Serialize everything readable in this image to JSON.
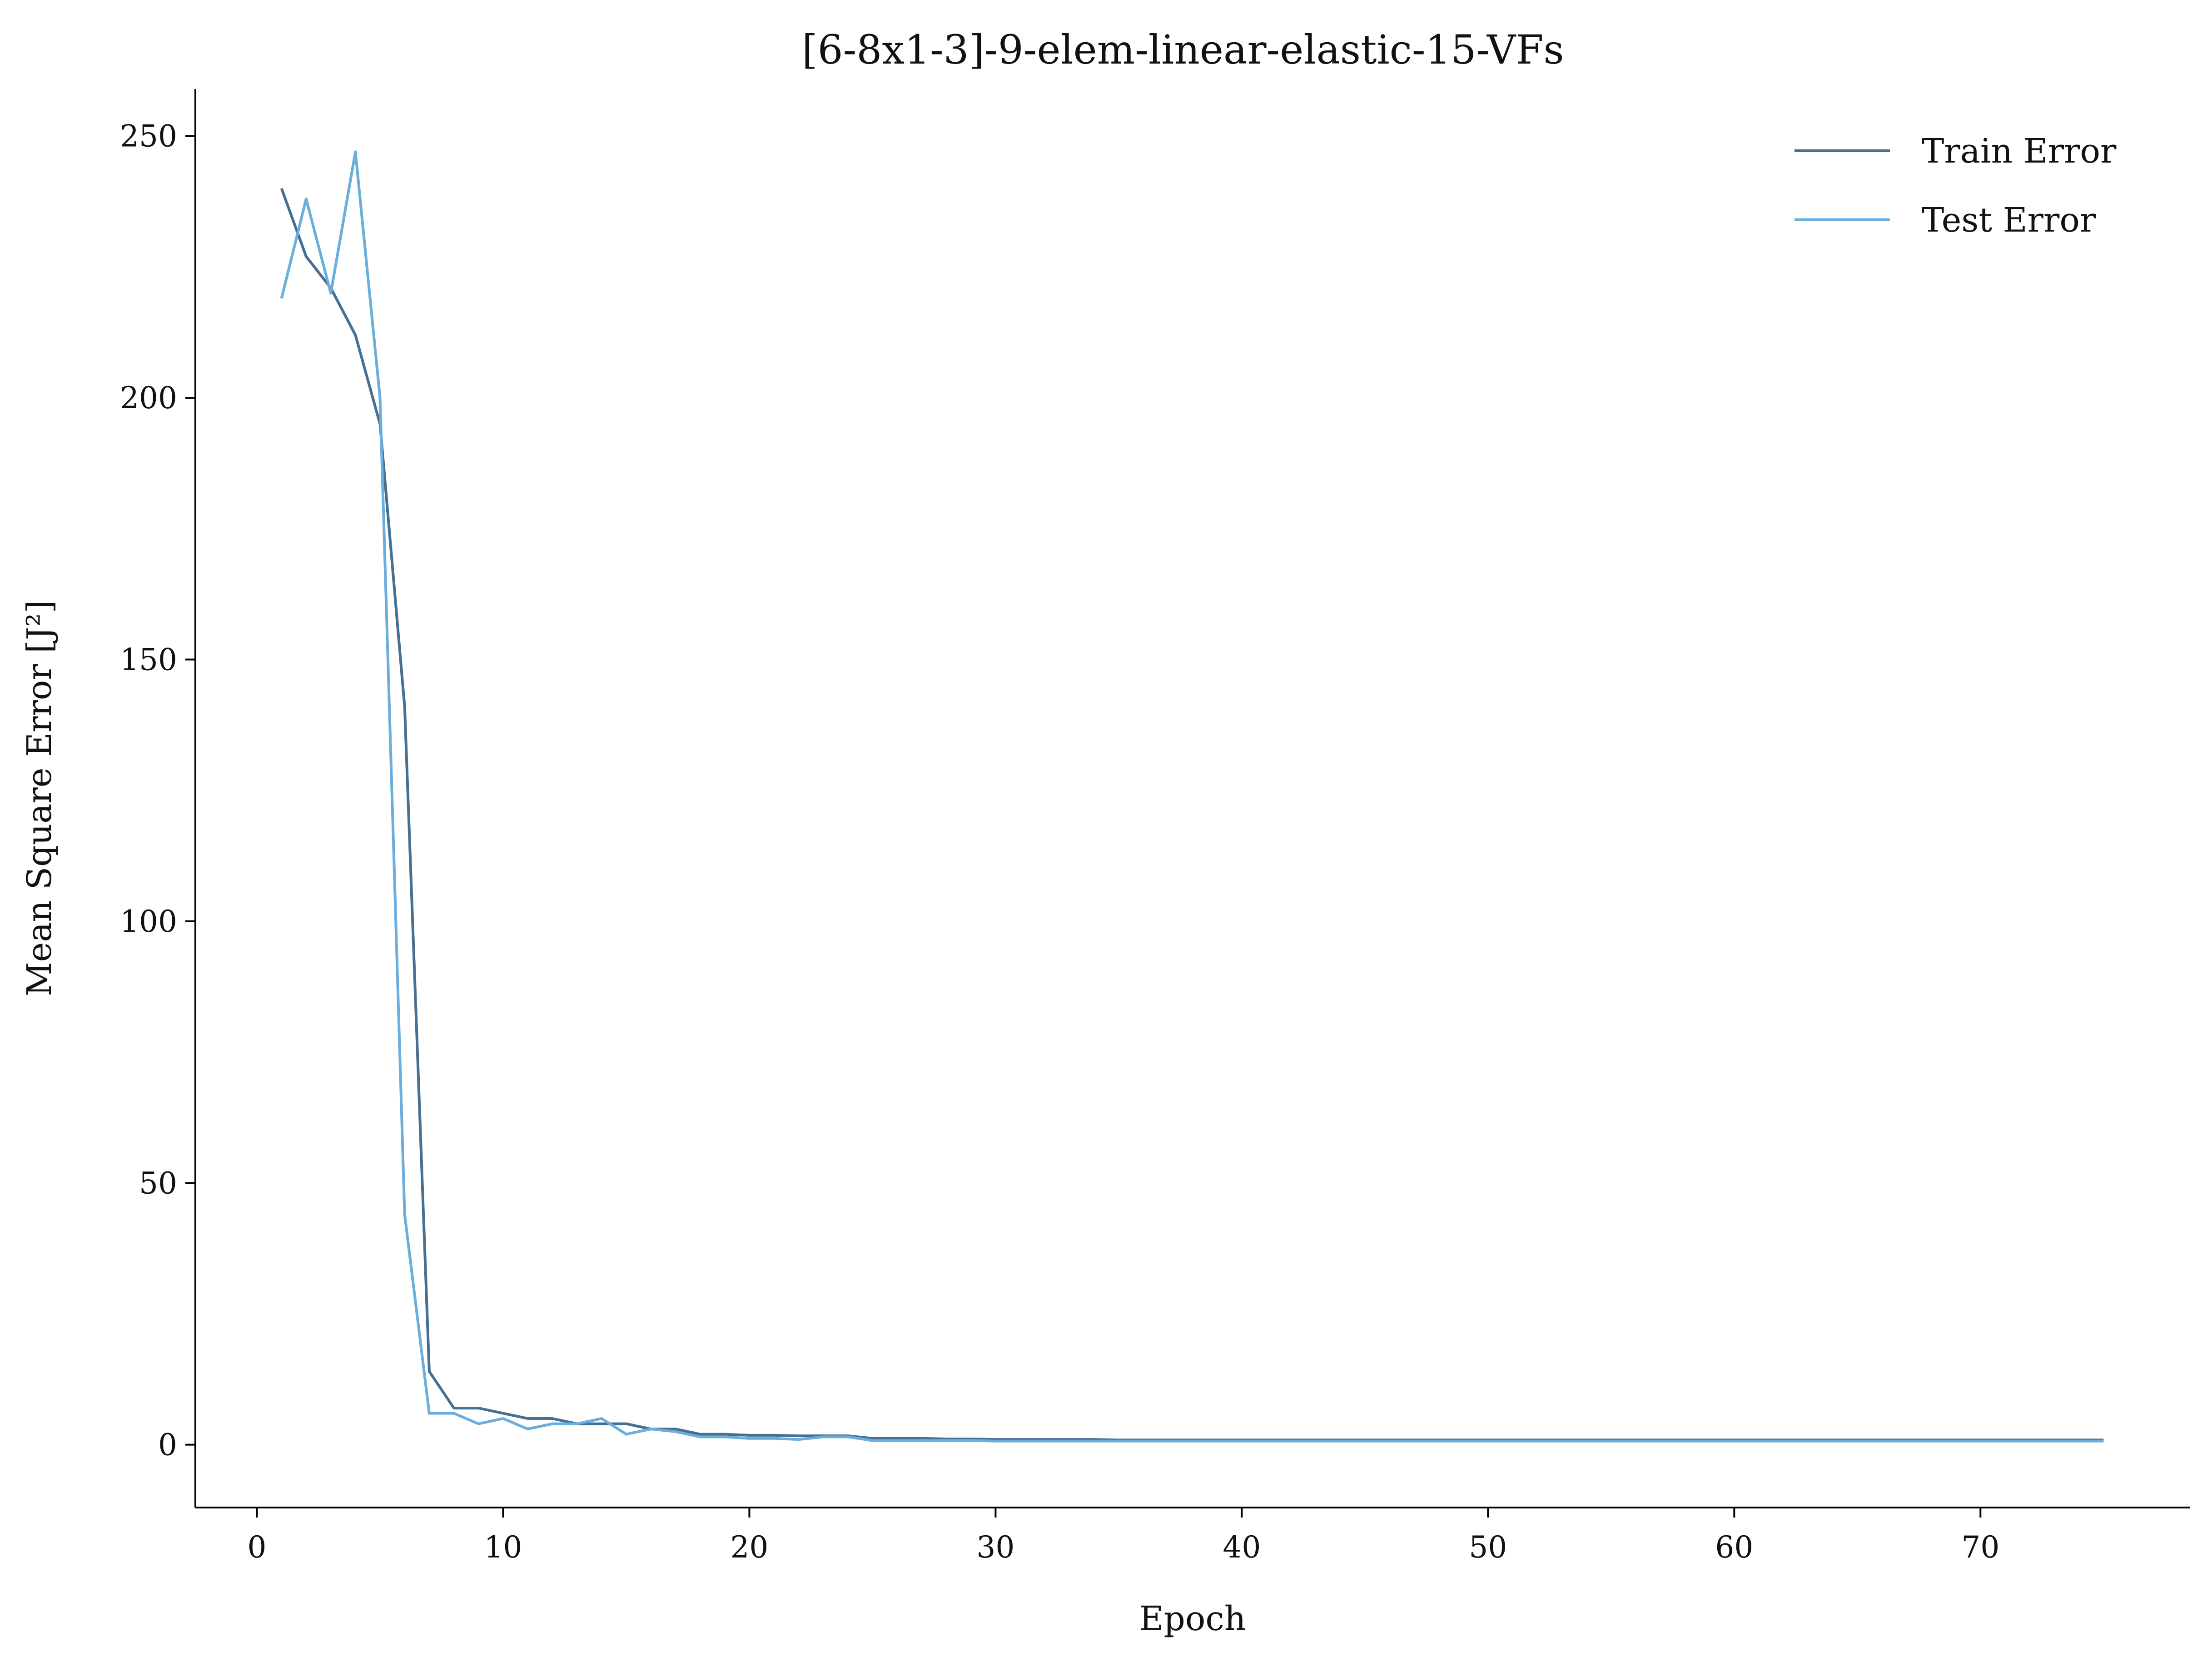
{
  "chart_data": {
    "type": "line",
    "title": "[6-8x1-3]-9-elem-linear-elastic-15-VFs",
    "xlabel": "Epoch",
    "ylabel": "Mean Square Error [J²]",
    "xlim": [
      -2.5,
      78.5
    ],
    "ylim": [
      -12,
      259
    ],
    "xticks": [
      0,
      10,
      20,
      30,
      40,
      50,
      60,
      70
    ],
    "yticks": [
      0,
      50,
      100,
      150,
      200,
      250
    ],
    "grid": false,
    "legend_position": "top-right",
    "x": [
      1,
      2,
      3,
      4,
      5,
      6,
      7,
      8,
      9,
      10,
      11,
      12,
      13,
      14,
      15,
      16,
      17,
      18,
      19,
      20,
      21,
      22,
      23,
      24,
      25,
      26,
      27,
      28,
      29,
      30,
      31,
      32,
      33,
      34,
      35,
      36,
      37,
      38,
      39,
      40,
      41,
      42,
      43,
      44,
      45,
      46,
      47,
      48,
      49,
      50,
      51,
      52,
      53,
      54,
      55,
      56,
      57,
      58,
      59,
      60,
      61,
      62,
      63,
      64,
      65,
      66,
      67,
      68,
      69,
      70,
      71,
      72,
      73,
      74,
      75
    ],
    "series": [
      {
        "name": "Train Error",
        "color": "#456f93",
        "values": [
          240,
          227,
          221,
          212,
          195,
          141,
          14,
          7,
          7,
          6,
          5,
          5,
          4,
          4,
          4,
          3,
          3,
          2,
          2,
          1.8,
          1.8,
          1.7,
          1.7,
          1.7,
          1.2,
          1.2,
          1.2,
          1.1,
          1.1,
          1,
          1,
          1,
          1,
          1,
          0.9,
          0.9,
          0.9,
          0.9,
          0.9,
          0.9,
          0.9,
          0.9,
          0.9,
          0.9,
          0.9,
          0.9,
          0.9,
          0.9,
          0.9,
          0.9,
          0.9,
          0.9,
          0.9,
          0.9,
          0.9,
          0.9,
          0.9,
          0.9,
          0.9,
          0.9,
          0.9,
          0.9,
          0.9,
          0.9,
          0.9,
          0.9,
          0.9,
          0.9,
          0.9,
          0.9,
          0.9,
          0.9,
          0.9,
          0.9,
          0.9
        ]
      },
      {
        "name": "Test Error",
        "color": "#6aaedc",
        "values": [
          219,
          238,
          220,
          247,
          200,
          44,
          6,
          6,
          4,
          5,
          3,
          4,
          4,
          5,
          2,
          3,
          2.5,
          1.5,
          1.5,
          1.2,
          1.2,
          1,
          1.5,
          1.5,
          0.8,
          0.8,
          0.8,
          0.8,
          0.8,
          0.7,
          0.7,
          0.7,
          0.7,
          0.7,
          0.7,
          0.7,
          0.7,
          0.7,
          0.7,
          0.7,
          0.7,
          0.7,
          0.7,
          0.7,
          0.7,
          0.7,
          0.7,
          0.7,
          0.7,
          0.7,
          0.7,
          0.7,
          0.7,
          0.7,
          0.7,
          0.7,
          0.7,
          0.7,
          0.7,
          0.7,
          0.7,
          0.7,
          0.7,
          0.7,
          0.7,
          0.7,
          0.7,
          0.7,
          0.7,
          0.7,
          0.7,
          0.7,
          0.7,
          0.7,
          0.7
        ]
      }
    ]
  }
}
